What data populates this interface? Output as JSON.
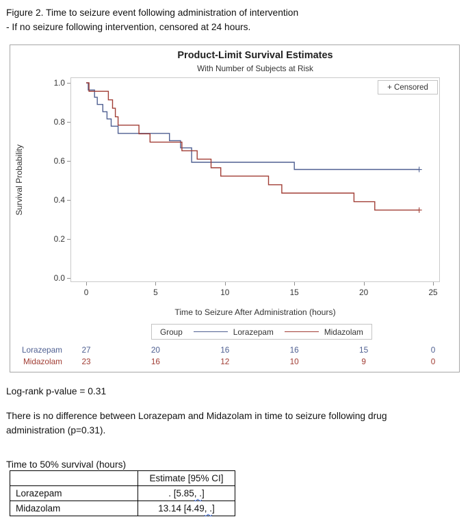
{
  "doc": {
    "caption_line1": "Figure 2. Time to seizure event following administration of intervention",
    "caption_line2": "- If no seizure following intervention, censored at 24 hours.",
    "logrank_text": "Log-rank p-value = 0.31",
    "conclusion_text": "There is no difference between Lorazepam and Midazolam in time to seizure following drug administration (p=0.31).",
    "median_table": {
      "title": "Time to 50% survival (hours)",
      "header_col1": "",
      "header_col2": "Estimate [95% CI]",
      "rows": [
        {
          "label": "Lorazepam",
          "value_prefix": ". [5.85",
          "value_squiggle": ", .",
          "value_suffix": "]"
        },
        {
          "label": "Midazolam",
          "value_prefix": "13.14 [4.49",
          "value_squiggle": ", .",
          "value_suffix": "]"
        }
      ]
    }
  },
  "chart_data": {
    "type": "line",
    "subtype": "kaplan-meier-step",
    "title": "Product-Limit Survival Estimates",
    "subtitle": "With Number of Subjects at Risk",
    "xlabel": "Time to Seizure After Administration (hours)",
    "ylabel": "Survival Probability",
    "xlim": [
      0,
      25
    ],
    "ylim": [
      0,
      1
    ],
    "xticks": [
      0,
      5,
      10,
      15,
      20,
      25
    ],
    "yticks": [
      "1.0",
      "0.8",
      "0.6",
      "0.4",
      "0.2",
      "0.0"
    ],
    "grid": false,
    "censored_label": "+ Censored",
    "legend": {
      "title": "Group",
      "position": "bottom",
      "entries": [
        {
          "label": "Lorazepam",
          "color": "#4e5f91"
        },
        {
          "label": "Midazolam",
          "color": "#a13d34"
        }
      ]
    },
    "series": [
      {
        "name": "Lorazepam",
        "color": "#4e5f91",
        "n": 27,
        "censor_time": 24,
        "steps": [
          [
            0,
            1.0
          ],
          [
            0.15,
            0.963
          ],
          [
            0.6,
            0.926
          ],
          [
            0.8,
            0.889
          ],
          [
            1.2,
            0.852
          ],
          [
            1.5,
            0.815
          ],
          [
            1.8,
            0.778
          ],
          [
            2.3,
            0.741
          ],
          [
            6.0,
            0.704
          ],
          [
            6.8,
            0.667
          ],
          [
            7.6,
            0.593
          ],
          [
            15.0,
            0.556
          ]
        ]
      },
      {
        "name": "Midazolam",
        "color": "#a13d34",
        "n": 23,
        "censor_time": 24,
        "steps": [
          [
            0,
            1.0
          ],
          [
            0.2,
            0.957
          ],
          [
            1.6,
            0.913
          ],
          [
            1.9,
            0.87
          ],
          [
            2.1,
            0.826
          ],
          [
            2.3,
            0.783
          ],
          [
            3.8,
            0.739
          ],
          [
            4.6,
            0.696
          ],
          [
            6.9,
            0.652
          ],
          [
            8.0,
            0.609
          ],
          [
            9.0,
            0.565
          ],
          [
            9.7,
            0.522
          ],
          [
            13.14,
            0.478
          ],
          [
            14.1,
            0.435
          ],
          [
            19.3,
            0.391
          ],
          [
            20.8,
            0.348
          ]
        ]
      }
    ],
    "at_risk": {
      "times": [
        0,
        5,
        10,
        15,
        20,
        25
      ],
      "rows": [
        {
          "label": "Lorazepam",
          "color": "#4e5f91",
          "counts": [
            27,
            20,
            16,
            16,
            15,
            0
          ]
        },
        {
          "label": "Midazolam",
          "color": "#a13d34",
          "counts": [
            23,
            16,
            12,
            10,
            9,
            0
          ]
        }
      ]
    }
  }
}
